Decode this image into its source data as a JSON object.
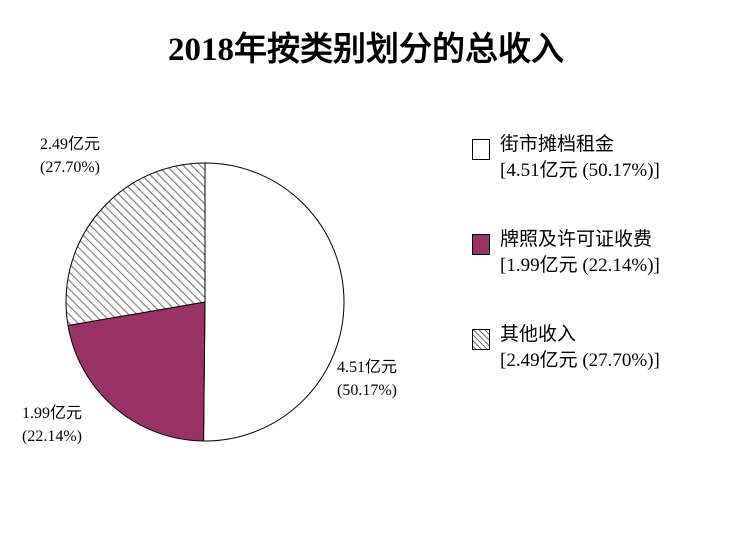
{
  "chart_data": {
    "type": "pie",
    "title": "2018年按类别划分的总收入",
    "slices": [
      {
        "name": "街市摊档租金",
        "value": 4.51,
        "unit": "亿元",
        "percent": 50.17,
        "color": "#ffffff",
        "pattern": "solid",
        "label_value": "4.51亿元",
        "label_pct": "(50.17%)",
        "legend_detail": "[4.51亿元 (50.17%)]"
      },
      {
        "name": "牌照及许可证收费",
        "value": 1.99,
        "unit": "亿元",
        "percent": 22.14,
        "color": "#993366",
        "pattern": "solid",
        "label_value": "1.99亿元",
        "label_pct": "(22.14%)",
        "legend_detail": "[1.99亿元 (22.14%)]"
      },
      {
        "name": "其他收入",
        "value": 2.49,
        "unit": "亿元",
        "percent": 27.7,
        "color": "#808080",
        "pattern": "diagonal-hatch",
        "label_value": "2.49亿元",
        "label_pct": "(27.70%)",
        "legend_detail": "[2.49亿元 (27.70%)]"
      }
    ],
    "start_angle": "12 o'clock",
    "direction": "clockwise",
    "legend_placement": "right"
  }
}
